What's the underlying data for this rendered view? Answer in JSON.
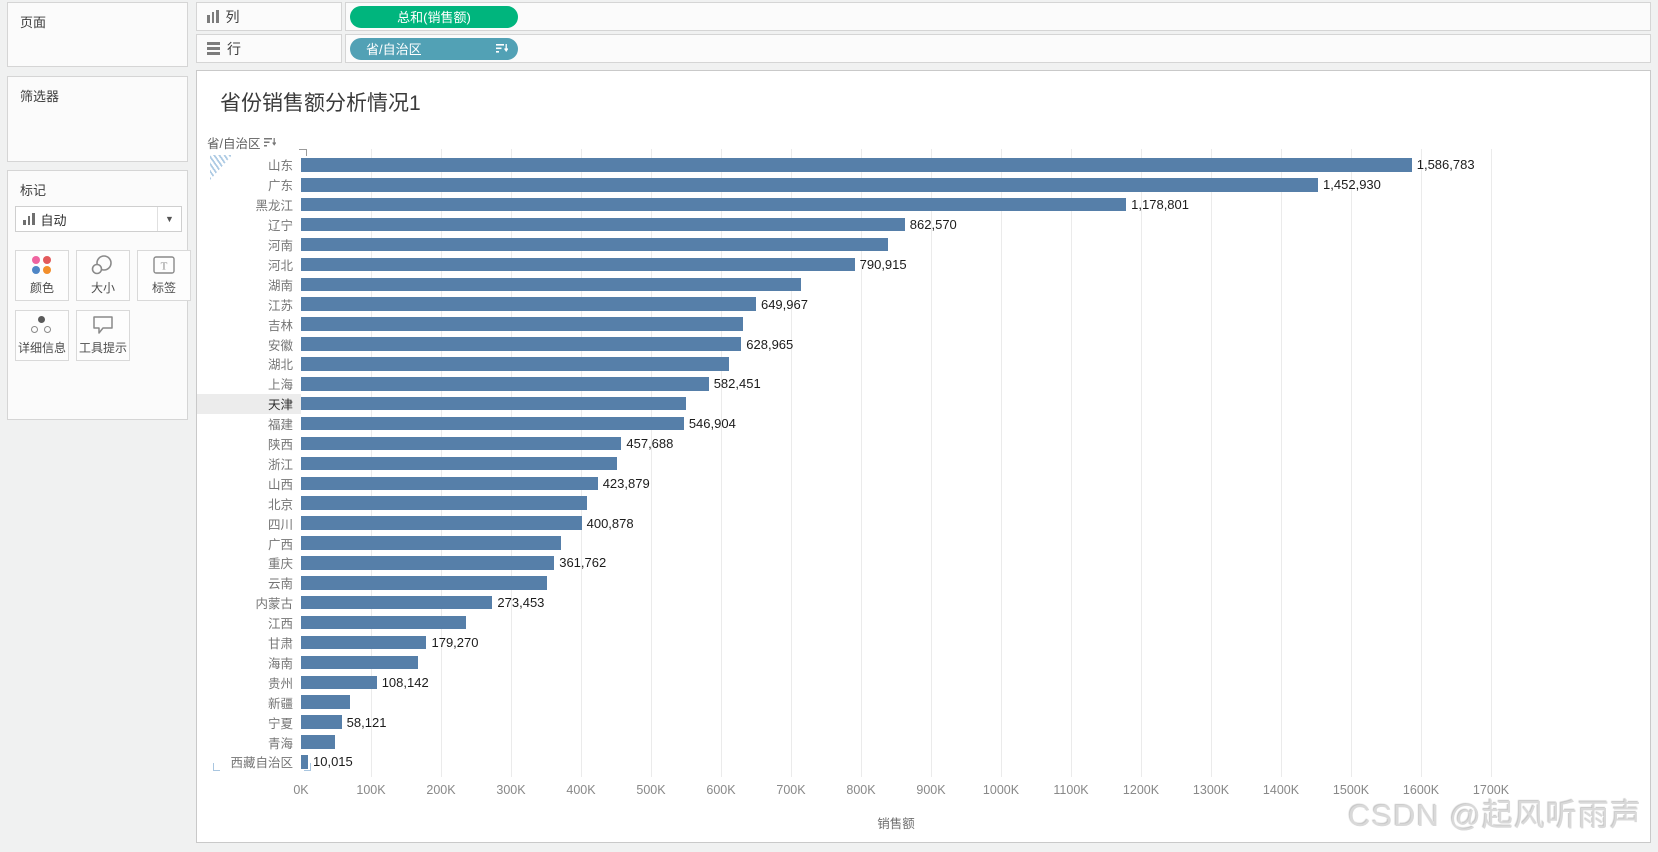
{
  "left_panel": {
    "pages_label": "页面",
    "filters_label": "筛选器",
    "marks": {
      "title": "标记",
      "mark_type": "自动",
      "buttons": [
        {
          "id": "color",
          "label": "颜色"
        },
        {
          "id": "size",
          "label": "大小"
        },
        {
          "id": "label",
          "label": "标签"
        },
        {
          "id": "detail",
          "label": "详细信息"
        },
        {
          "id": "tooltip",
          "label": "工具提示"
        }
      ]
    }
  },
  "shelves": {
    "columns_label": "列",
    "rows_label": "行",
    "columns_pill": "总和(销售额)",
    "rows_pill": "省/自治区"
  },
  "chart": {
    "title": "省份销售额分析情况1",
    "row_field_label": "省/自治区",
    "highlighted_category": "天津",
    "colors": {
      "bar": "#567fa9",
      "columns_pill_green": "#00b57d",
      "rows_pill_teal": "#52a1b5"
    }
  },
  "chart_data": {
    "type": "bar",
    "orientation": "horizontal",
    "title": "省份销售额分析情况1",
    "xlabel": "销售额",
    "ylabel": "省/自治区",
    "xlim": [
      0,
      1700000
    ],
    "grid": true,
    "sort": "descending",
    "categories": [
      "山东",
      "广东",
      "黑龙江",
      "辽宁",
      "河南",
      "河北",
      "湖南",
      "江苏",
      "吉林",
      "安徽",
      "湖北",
      "上海",
      "天津",
      "福建",
      "陕西",
      "浙江",
      "山西",
      "北京",
      "四川",
      "广西",
      "重庆",
      "云南",
      "内蒙古",
      "江西",
      "甘肃",
      "海南",
      "贵州",
      "新疆",
      "宁夏",
      "青海",
      "西藏自治区"
    ],
    "values": [
      1586783,
      1452930,
      1178801,
      862570,
      838000,
      790915,
      714000,
      649967,
      632000,
      628965,
      611000,
      582451,
      550000,
      546904,
      457688,
      451000,
      423879,
      408000,
      400878,
      372000,
      361762,
      352000,
      273453,
      235000,
      179270,
      167000,
      108142,
      70000,
      58121,
      49000,
      10015
    ],
    "bar_labels": [
      "1,586,783",
      "1,452,930",
      "1,178,801",
      "862,570",
      "",
      "790,915",
      "",
      "649,967",
      "",
      "628,965",
      "",
      "582,451",
      "",
      "546,904",
      "457,688",
      "",
      "423,879",
      "",
      "400,878",
      "",
      "361,762",
      "",
      "273,453",
      "",
      "179,270",
      "",
      "108,142",
      "",
      "58,121",
      "",
      "10,015"
    ],
    "x_ticks": [
      "0K",
      "100K",
      "200K",
      "300K",
      "400K",
      "500K",
      "600K",
      "700K",
      "800K",
      "900K",
      "1000K",
      "1100K",
      "1200K",
      "1300K",
      "1400K",
      "1500K",
      "1600K",
      "1700K"
    ],
    "highlighted_index": 12
  },
  "watermark": "CSDN @起风听雨声"
}
